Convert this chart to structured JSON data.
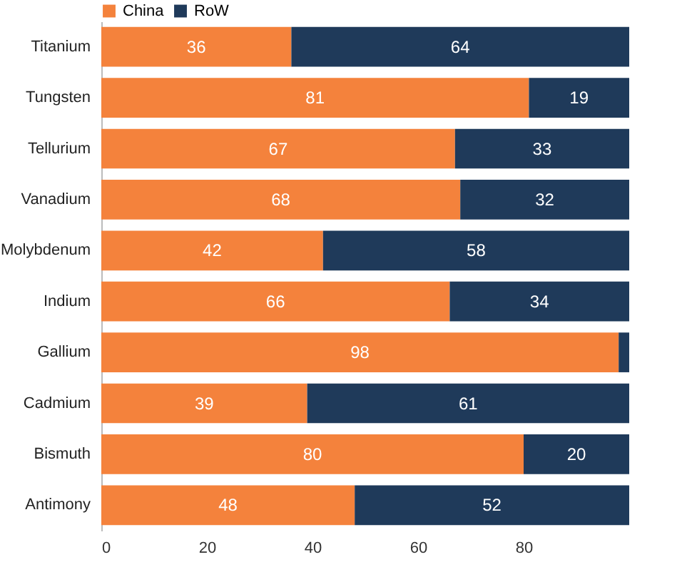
{
  "chart_data": {
    "type": "bar",
    "orientation": "horizontal",
    "stacked": true,
    "legend": "top",
    "xlim": [
      0,
      100
    ],
    "xticks": [
      0,
      20,
      40,
      60,
      80
    ],
    "categories": [
      "Titanium",
      "Tungsten",
      "Tellurium",
      "Vanadium",
      "Molybdenum",
      "Indium",
      "Gallium",
      "Cadmium",
      "Bismuth",
      "Antimony"
    ],
    "series": [
      {
        "name": "China",
        "color": "#f4823c",
        "values": [
          36,
          81,
          67,
          68,
          42,
          66,
          98,
          39,
          80,
          48
        ],
        "value_labels": [
          "36",
          "81",
          "67",
          "68",
          "42",
          "66",
          "98",
          "39",
          "80",
          "48"
        ]
      },
      {
        "name": "RoW",
        "color": "#1f3a5a",
        "values": [
          64,
          19,
          33,
          32,
          58,
          34,
          2,
          61,
          20,
          52
        ],
        "value_labels": [
          "64",
          "19",
          "33",
          "32",
          "58",
          "34",
          null,
          "61",
          "20",
          "52"
        ]
      }
    ]
  }
}
